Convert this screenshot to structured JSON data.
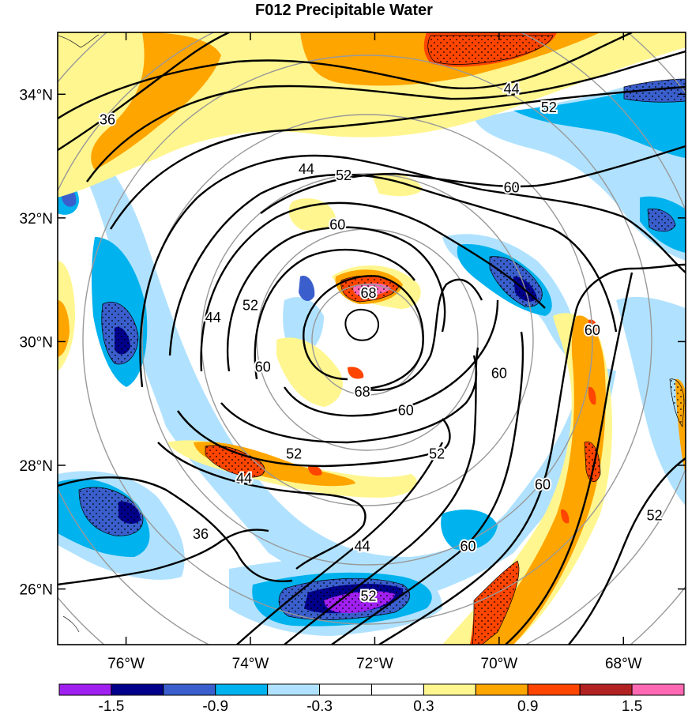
{
  "title": "F012 Precipitable Water",
  "map": {
    "lat_labels": [
      "34°N",
      "32°N",
      "30°N",
      "28°N",
      "26°N"
    ],
    "lat_values": [
      34,
      32,
      30,
      28,
      26
    ],
    "lon_labels": [
      "76°W",
      "74°W",
      "72°W",
      "70°W",
      "68°W"
    ],
    "lon_values": [
      -76,
      -74,
      -72,
      -70,
      -68
    ],
    "lat_range": [
      25.1,
      35.0
    ],
    "lon_range": [
      -77.1,
      -67.0
    ],
    "contour_labels": [
      {
        "text": "36",
        "lon": -76.3,
        "lat": 33.6
      },
      {
        "text": "44",
        "lon": -69.8,
        "lat": 34.1
      },
      {
        "text": "52",
        "lon": -69.2,
        "lat": 33.8
      },
      {
        "text": "44",
        "lon": -73.1,
        "lat": 32.8
      },
      {
        "text": "52",
        "lon": -72.5,
        "lat": 32.7
      },
      {
        "text": "60",
        "lon": -69.8,
        "lat": 32.5
      },
      {
        "text": "60",
        "lon": -72.6,
        "lat": 31.9
      },
      {
        "text": "68",
        "lon": -72.1,
        "lat": 30.8
      },
      {
        "text": "44",
        "lon": -74.6,
        "lat": 30.4
      },
      {
        "text": "52",
        "lon": -74.0,
        "lat": 30.6
      },
      {
        "text": "60",
        "lon": -73.8,
        "lat": 29.6
      },
      {
        "text": "68",
        "lon": -72.2,
        "lat": 29.2
      },
      {
        "text": "60",
        "lon": -71.5,
        "lat": 28.9
      },
      {
        "text": "60",
        "lon": -70.0,
        "lat": 29.5
      },
      {
        "text": "52",
        "lon": -71.0,
        "lat": 28.2
      },
      {
        "text": "52",
        "lon": -73.3,
        "lat": 28.2
      },
      {
        "text": "44",
        "lon": -74.1,
        "lat": 27.8
      },
      {
        "text": "60",
        "lon": -68.5,
        "lat": 30.2
      },
      {
        "text": "60",
        "lon": -69.3,
        "lat": 27.7
      },
      {
        "text": "60",
        "lon": -70.5,
        "lat": 26.7
      },
      {
        "text": "44",
        "lon": -72.2,
        "lat": 26.7
      },
      {
        "text": "52",
        "lon": -72.1,
        "lat": 25.9
      },
      {
        "text": "36",
        "lon": -74.8,
        "lat": 26.9
      },
      {
        "text": "52",
        "lon": -67.5,
        "lat": 27.2
      }
    ]
  },
  "colorbar": {
    "colors": [
      "#a020f0",
      "#00008b",
      "#3a5fcd",
      "#00b2ee",
      "#b0e2ff",
      "#ffffff",
      "#ffffff",
      "#fff68f",
      "#ffa500",
      "#ff4500",
      "#b22222",
      "#ff69b4"
    ],
    "labels": [
      "-1.5",
      "-0.9",
      "-0.3",
      "0.3",
      "0.9",
      "1.5"
    ]
  }
}
